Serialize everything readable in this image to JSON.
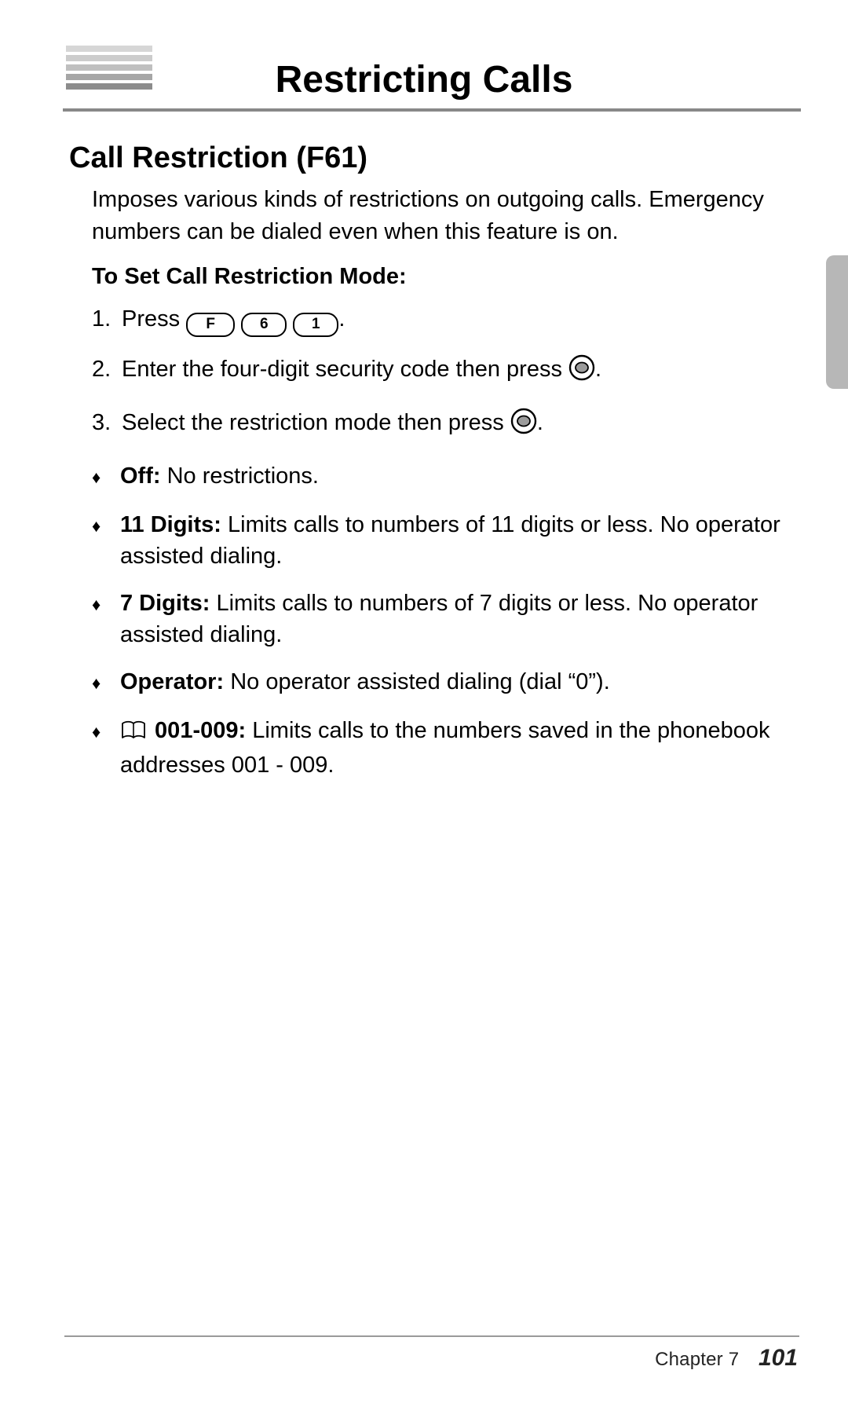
{
  "title": "Restricting Calls",
  "heading": "Call Restriction (F61)",
  "intro": "Imposes various kinds of restrictions on outgoing calls. Emergency numbers can be dialed even when this feature is on.",
  "subhead": "To Set Call Restriction Mode:",
  "steps": {
    "s1_prefix": "Press ",
    "s1_keys": [
      "F",
      "6",
      "1"
    ],
    "s1_suffix": ".",
    "s2_a": "Enter the four-digit security code then press ",
    "s2_b": ".",
    "s3_a": "Select the restriction mode then press ",
    "s3_b": "."
  },
  "items": [
    {
      "name": "Off:",
      "desc": " No restrictions."
    },
    {
      "name": "11 Digits:",
      "desc": " Limits calls to numbers of 11 digits or less. No opera­tor assisted dialing."
    },
    {
      "name": "7 Digits:",
      "desc": " Limits calls to numbers of 7 digits or less. No operator assisted dialing."
    },
    {
      "name": "Operator:",
      "desc": " No operator assisted dialing (dial “0”)."
    },
    {
      "icon": true,
      "name": " 001-009:",
      "desc": " Limits calls to the numbers saved in the phonebook addresses 001 - 009."
    }
  ],
  "footer": {
    "chapter": "Chapter 7",
    "page": "101"
  },
  "colors": {
    "text": "#000000",
    "rule": "#888888",
    "sidetab": "#b7b7b7"
  }
}
